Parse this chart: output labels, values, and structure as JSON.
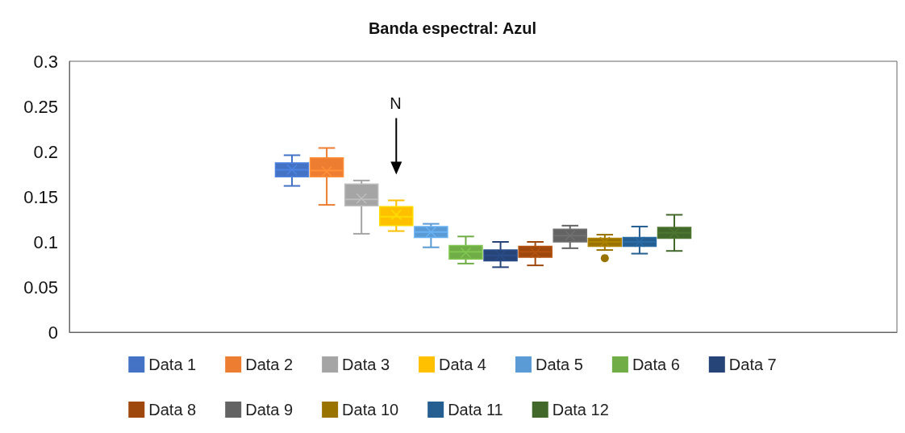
{
  "chart_data": {
    "type": "box",
    "title": "Banda espectral: Azul",
    "categories": [
      null
    ],
    "ylim": [
      0,
      0.3
    ],
    "yticks": [
      0,
      0.05,
      0.1,
      0.15,
      0.2,
      0.25,
      0.3
    ],
    "grid": false,
    "legend": "bottom",
    "tick_labels": "y",
    "annotations": [
      "N"
    ],
    "series": [
      {
        "name": "Data 1",
        "color": "#4472c4",
        "boxes": [
          {
            "low": 0.162,
            "q1": 0.172,
            "median": 0.18,
            "q3": 0.1875,
            "high": 0.196,
            "mean": 0.18
          }
        ]
      },
      {
        "name": "Data 2",
        "color": "#ed7d31",
        "boxes": [
          {
            "low": 0.141,
            "q1": 0.172,
            "median": 0.179,
            "q3": 0.193,
            "high": 0.204,
            "mean": 0.178
          }
        ]
      },
      {
        "name": "Data 3",
        "color": "#a5a5a5",
        "boxes": [
          {
            "low": 0.109,
            "q1": 0.14,
            "median": 0.147,
            "q3": 0.164,
            "high": 0.168,
            "mean": 0.148
          }
        ]
      },
      {
        "name": "Data 4",
        "color": "#ffc000",
        "boxes": [
          {
            "low": 0.112,
            "q1": 0.118,
            "median": 0.128,
            "q3": 0.139,
            "high": 0.146,
            "mean": 0.13
          }
        ]
      },
      {
        "name": "Data 5",
        "color": "#5b9bd5",
        "boxes": [
          {
            "low": 0.094,
            "q1": 0.105,
            "median": 0.111,
            "q3": 0.117,
            "high": 0.12,
            "mean": 0.111
          }
        ]
      },
      {
        "name": "Data 6",
        "color": "#70ad47",
        "boxes": [
          {
            "low": 0.076,
            "q1": 0.081,
            "median": 0.089,
            "q3": 0.096,
            "high": 0.106,
            "mean": 0.088
          }
        ]
      },
      {
        "name": "Data 7",
        "color": "#264478",
        "boxes": [
          {
            "low": 0.072,
            "q1": 0.079,
            "median": 0.085,
            "q3": 0.091,
            "high": 0.1,
            "mean": 0.085
          }
        ]
      },
      {
        "name": "Data 8",
        "color": "#9e480e",
        "boxes": [
          {
            "low": 0.074,
            "q1": 0.083,
            "median": 0.089,
            "q3": 0.095,
            "high": 0.1,
            "mean": 0.088
          }
        ]
      },
      {
        "name": "Data 9",
        "color": "#636363",
        "boxes": [
          {
            "low": 0.093,
            "q1": 0.1,
            "median": 0.107,
            "q3": 0.114,
            "high": 0.118,
            "mean": 0.107
          }
        ]
      },
      {
        "name": "Data 10",
        "color": "#997300",
        "boxes": [
          {
            "low": 0.091,
            "q1": 0.095,
            "median": 0.1,
            "q3": 0.104,
            "high": 0.108,
            "mean": 0.1,
            "outliers": [
              0.082
            ]
          }
        ]
      },
      {
        "name": "Data 11",
        "color": "#255e91",
        "boxes": [
          {
            "low": 0.087,
            "q1": 0.095,
            "median": 0.1,
            "q3": 0.105,
            "high": 0.117,
            "mean": 0.1
          }
        ]
      },
      {
        "name": "Data 12",
        "color": "#43682b",
        "boxes": [
          {
            "low": 0.09,
            "q1": 0.104,
            "median": 0.11,
            "q3": 0.116,
            "high": 0.13,
            "mean": 0.11
          }
        ]
      }
    ]
  }
}
